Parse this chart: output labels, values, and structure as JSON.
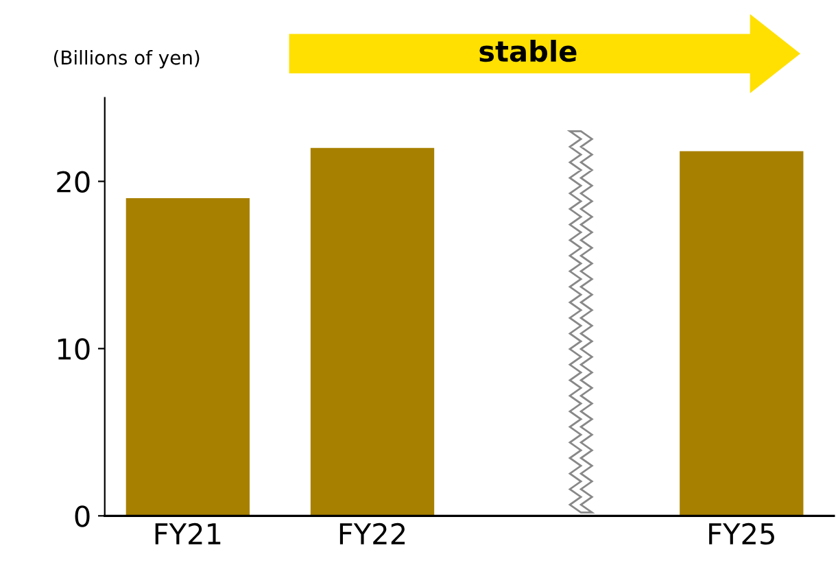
{
  "chart_data": {
    "type": "bar",
    "ylabel": "(Billions of yen)",
    "categories": [
      "FY21",
      "FY22",
      null,
      "FY25"
    ],
    "values": [
      19,
      22,
      null,
      21.8
    ],
    "color": "#a88000",
    "ylim": [
      0,
      25
    ],
    "yticks": [
      0,
      10,
      20
    ],
    "grid": false,
    "annotations": [
      "stable"
    ]
  }
}
